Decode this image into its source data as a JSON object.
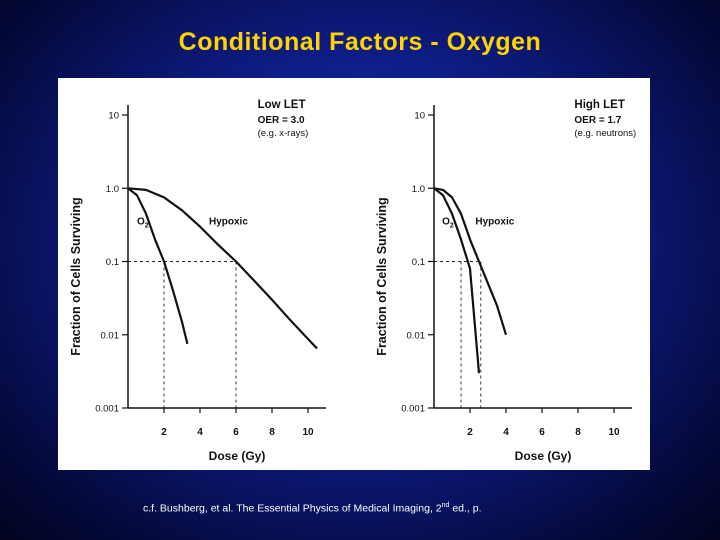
{
  "slide": {
    "title": "Conditional Factors - Oxygen",
    "citation_pre": "c.f. Bushberg, et al. The Essential Physics of Medical Imaging, 2",
    "citation_sup": "nd",
    "citation_post": " ed., p."
  },
  "chart_data": [
    {
      "type": "line",
      "title": "",
      "xlabel": "Dose (Gy)",
      "ylabel": "Fraction of Cells Surviving",
      "yscale": "log",
      "xlim": [
        0,
        11
      ],
      "ylim": [
        0.001,
        10
      ],
      "xticks": [
        "2",
        "4",
        "6",
        "8",
        "10"
      ],
      "yticks": [
        "10",
        "1.0",
        "0.1",
        "0.01",
        "0.001"
      ],
      "annotations": [
        "Low LET",
        "OER = 3.0",
        "(e.g. x-rays)"
      ],
      "series": [
        {
          "name": "O₂",
          "label": "O",
          "label_sub": "2",
          "x": [
            0,
            0.5,
            1,
            1.5,
            2,
            2.5,
            3,
            3.3
          ],
          "y": [
            1.0,
            0.8,
            0.45,
            0.2,
            0.1,
            0.04,
            0.015,
            0.0075
          ]
        },
        {
          "name": "Hypoxic",
          "label": "Hypoxic",
          "x": [
            0,
            1,
            2,
            3,
            4,
            5,
            6,
            7,
            8,
            9,
            10.5
          ],
          "y": [
            1.0,
            0.95,
            0.75,
            0.5,
            0.3,
            0.17,
            0.1,
            0.055,
            0.03,
            0.016,
            0.0065
          ]
        }
      ],
      "reference_lines": [
        {
          "y": 0.1,
          "x_from": 0,
          "x_to": 6
        },
        {
          "x": 2,
          "y_to": 0.1
        },
        {
          "x": 6,
          "y_to": 0.1
        }
      ]
    },
    {
      "type": "line",
      "title": "",
      "xlabel": "Dose (Gy)",
      "ylabel": "Fraction of Cells Surviving",
      "yscale": "log",
      "xlim": [
        0,
        11
      ],
      "ylim": [
        0.001,
        10
      ],
      "xticks": [
        "2",
        "4",
        "6",
        "8",
        "10"
      ],
      "yticks": [
        "10",
        "1.0",
        "0.1",
        "0.01",
        "0.001"
      ],
      "annotations": [
        "High LET",
        "OER = 1.7",
        "(e.g. neutrons)"
      ],
      "series": [
        {
          "name": "O₂",
          "label": "O",
          "label_sub": "2",
          "x": [
            0,
            0.5,
            1,
            1.5,
            2,
            2.5
          ],
          "y": [
            1.0,
            0.8,
            0.45,
            0.2,
            0.08,
            0.003
          ]
        },
        {
          "name": "Hypoxic",
          "label": "Hypoxic",
          "x": [
            0,
            0.5,
            1,
            1.5,
            2,
            2.5,
            3,
            3.5,
            4
          ],
          "y": [
            1.0,
            0.95,
            0.75,
            0.45,
            0.2,
            0.1,
            0.05,
            0.025,
            0.01
          ]
        }
      ],
      "reference_lines": [
        {
          "y": 0.1,
          "x_from": 0,
          "x_to": 2.6
        },
        {
          "x": 1.5,
          "y_to": 0.1
        },
        {
          "x": 2.6,
          "y_to": 0.1
        }
      ]
    }
  ]
}
